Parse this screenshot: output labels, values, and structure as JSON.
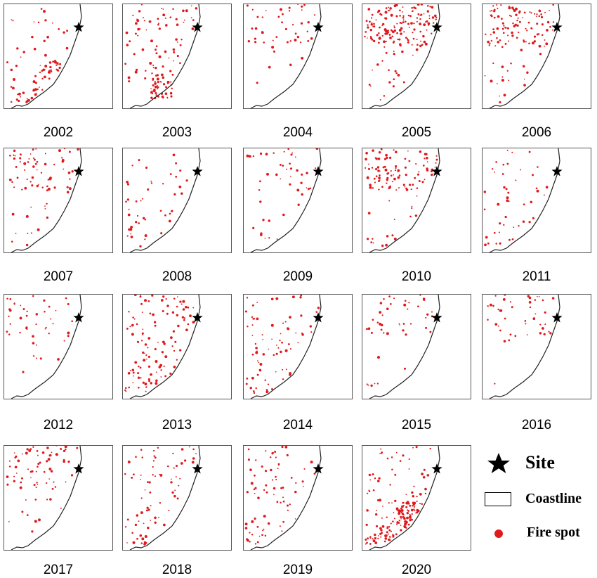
{
  "panels": [
    {
      "year": "2002",
      "fire_level": "moderate",
      "cluster": "south coast"
    },
    {
      "year": "2003",
      "fire_level": "high",
      "cluster": "far south inland"
    },
    {
      "year": "2004",
      "fire_level": "low",
      "cluster": "north"
    },
    {
      "year": "2005",
      "fire_level": "very high",
      "cluster": "north"
    },
    {
      "year": "2006",
      "fire_level": "high",
      "cluster": "north"
    },
    {
      "year": "2007",
      "fire_level": "moderate",
      "cluster": "north"
    },
    {
      "year": "2008",
      "fire_level": "low",
      "cluster": "scattered"
    },
    {
      "year": "2009",
      "fire_level": "low",
      "cluster": "north"
    },
    {
      "year": "2010",
      "fire_level": "high",
      "cluster": "north"
    },
    {
      "year": "2011",
      "fire_level": "low",
      "cluster": "scattered"
    },
    {
      "year": "2012",
      "fire_level": "low",
      "cluster": "north"
    },
    {
      "year": "2013",
      "fire_level": "high",
      "cluster": "widespread"
    },
    {
      "year": "2014",
      "fire_level": "moderate",
      "cluster": "widespread"
    },
    {
      "year": "2015",
      "fire_level": "low",
      "cluster": "north"
    },
    {
      "year": "2016",
      "fire_level": "low",
      "cluster": "north"
    },
    {
      "year": "2017",
      "fire_level": "moderate",
      "cluster": "north"
    },
    {
      "year": "2018",
      "fire_level": "moderate",
      "cluster": "widespread"
    },
    {
      "year": "2019",
      "fire_level": "moderate",
      "cluster": "widespread"
    },
    {
      "year": "2020",
      "fire_level": "very high",
      "cluster": "south coast"
    }
  ],
  "legend": {
    "site_label": "Site",
    "coastline_label": "Coastline",
    "fire_label": "Fire spot"
  },
  "colors": {
    "fire": "#e0191c",
    "site": "#000000",
    "coastline": "#222222"
  }
}
